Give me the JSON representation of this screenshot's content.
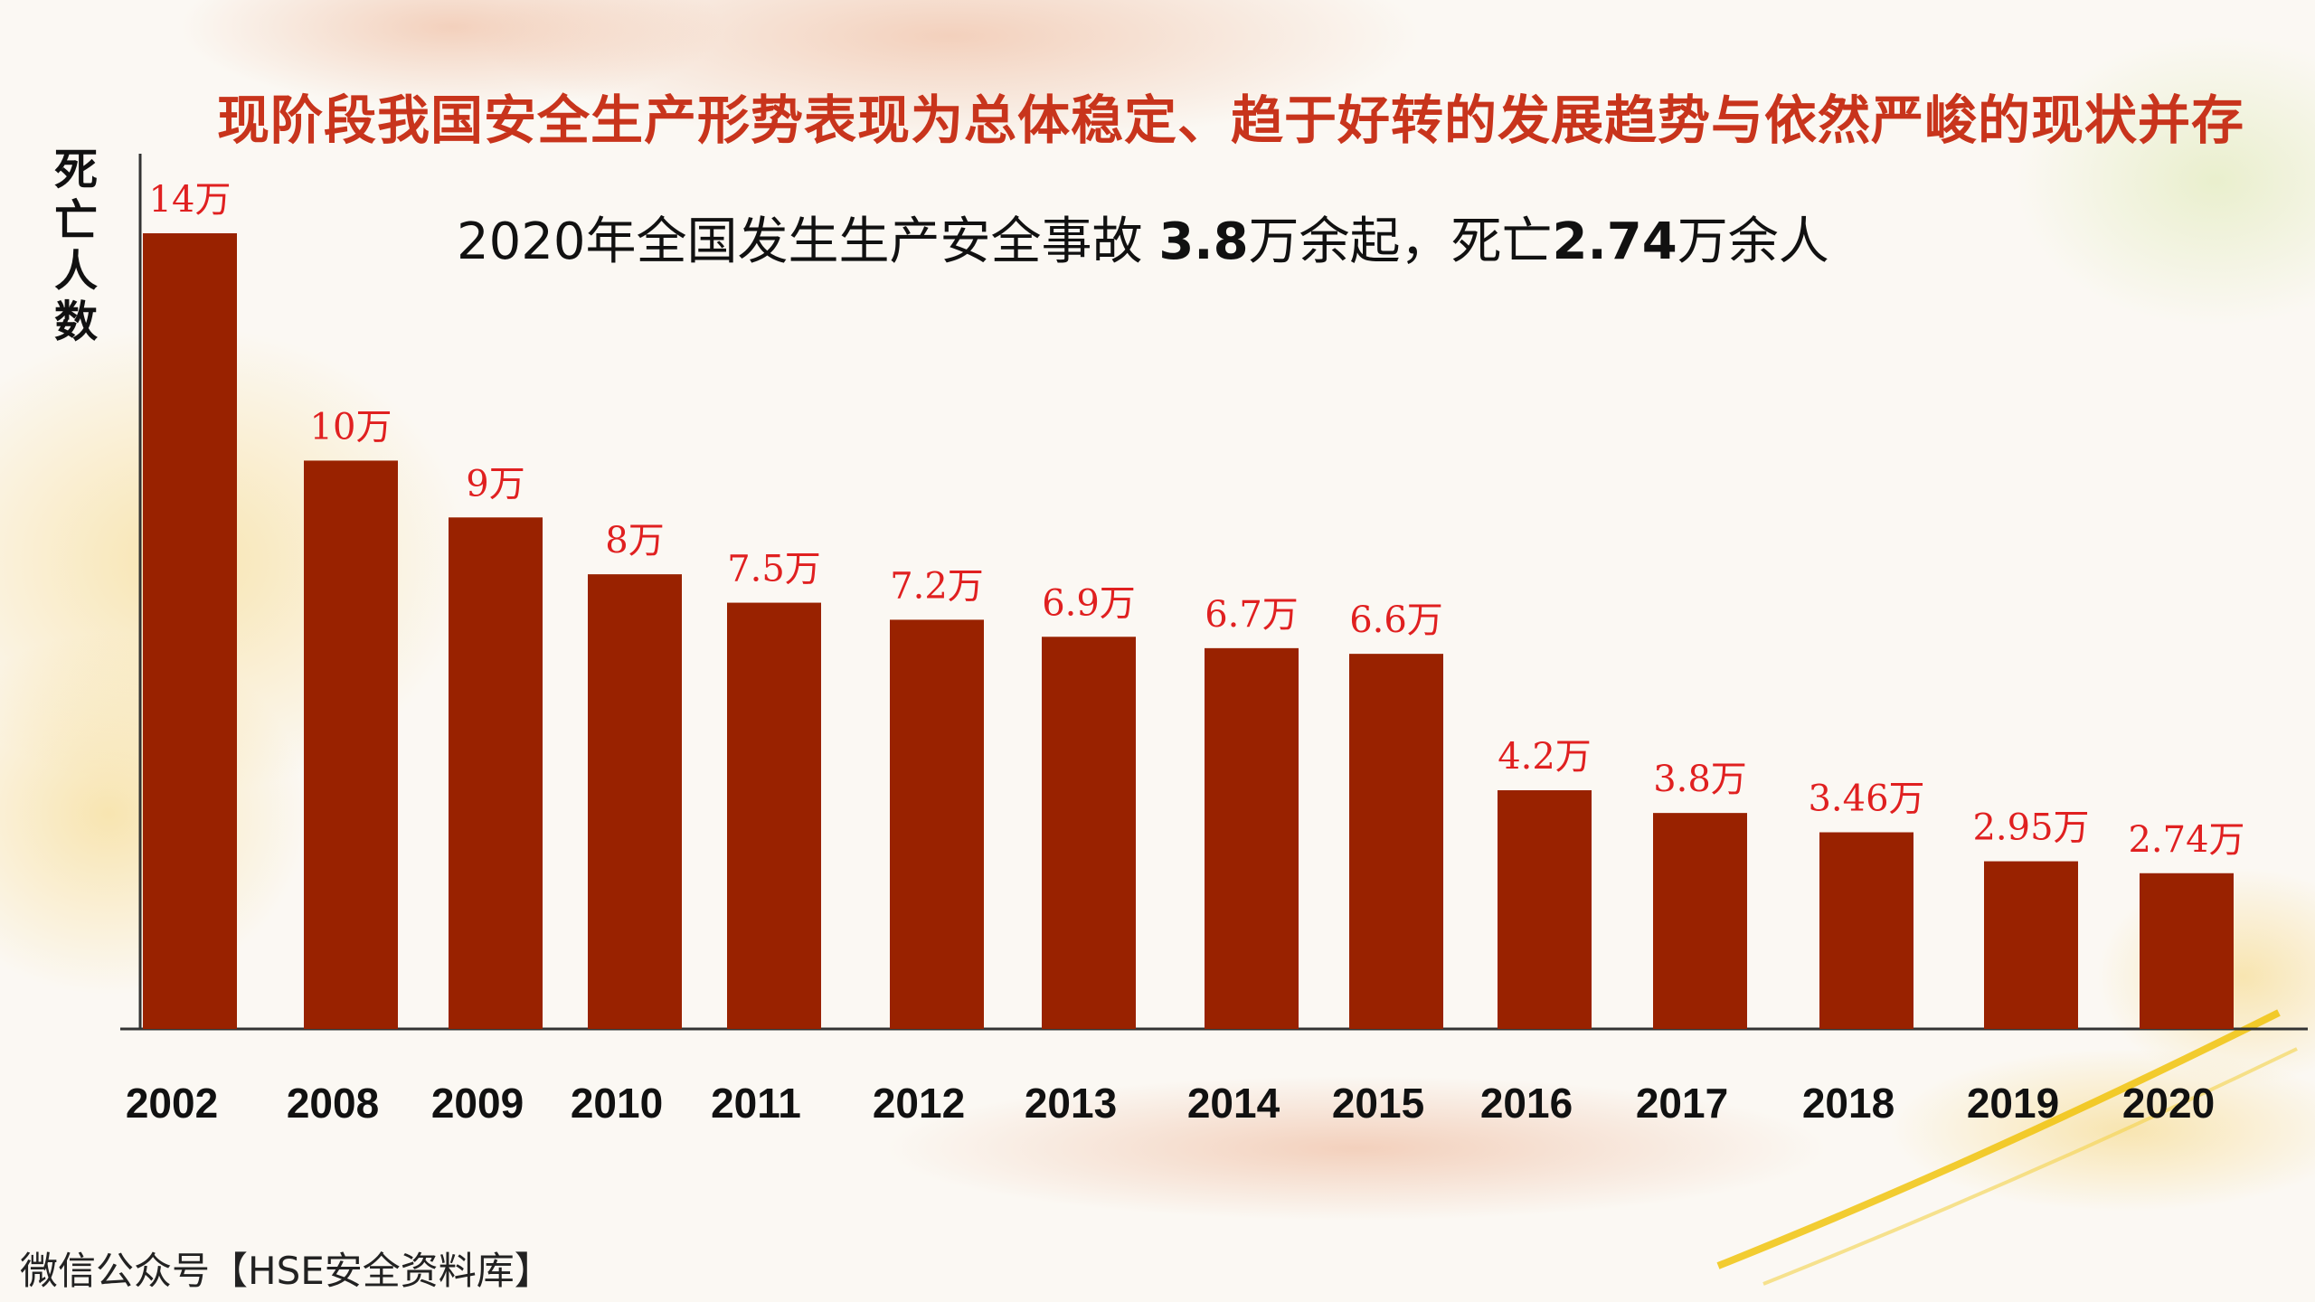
{
  "headline": "现阶段我国安全生产形势表现为总体稳定、趋于好转的发展趋势与依然严峻的现状并存",
  "subtitle": {
    "part1": "2020年全国发生生产安全事故 ",
    "num1": "3.8",
    "part2": "万余起，死亡",
    "num2": "2.74",
    "part3": "万余人"
  },
  "footer": "微信公众号【HSE安全资料库】",
  "colors": {
    "bar": "#992200",
    "label": "#e02020",
    "headline": "#c8341c"
  },
  "chart_data": {
    "type": "bar",
    "title": "",
    "xlabel": "",
    "ylabel": "死亡人数",
    "unit": "万",
    "ylim": [
      0,
      15.4
    ],
    "grid": false,
    "legend": "none",
    "categories": [
      "2002",
      "2008",
      "2009",
      "2010",
      "2011",
      "2012",
      "2013",
      "2014",
      "2015",
      "2016",
      "2017",
      "2018",
      "2019",
      "2020"
    ],
    "values": [
      14,
      10,
      9,
      8,
      7.5,
      7.2,
      6.9,
      6.7,
      6.6,
      4.2,
      3.8,
      3.46,
      2.95,
      2.74
    ],
    "data_labels": [
      "14万",
      "10万",
      "9万",
      "8万",
      "7.5万",
      "7.2万",
      "6.9万",
      "6.7万",
      "6.6万",
      "4.2万",
      "3.8万",
      "3.46万",
      "2.95万",
      "2.74万"
    ]
  }
}
